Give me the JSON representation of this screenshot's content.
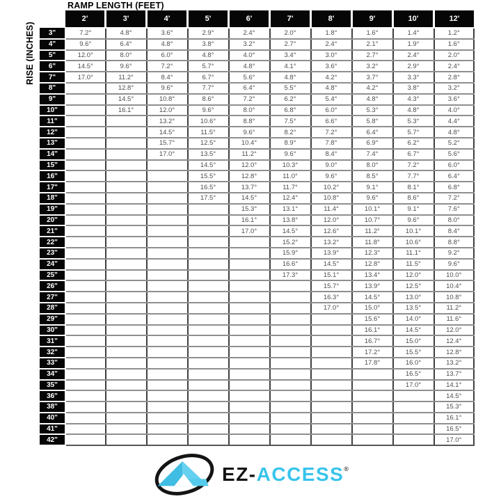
{
  "header": {
    "title": "RAMP LENGTH (FEET)",
    "y_axis_label": "RISE (INCHES)"
  },
  "logo": {
    "text_black": "EZ-",
    "text_cyan": "ACCESS",
    "registered_mark": "®",
    "emblem_icon": "mountain-triangle-in-ellipse",
    "color_cyan": "#38c4ec",
    "color_black": "#141414"
  },
  "colors": {
    "header_bg": "#060606",
    "cell_text": "#4d4d4d",
    "horizontal_grid": "#8e8e8e",
    "vertical_grid": "#3f3f3f"
  },
  "chart_data": {
    "type": "table",
    "title": "RAMP LENGTH (FEET)",
    "xlabel": "RAMP LENGTH (FEET)",
    "ylabel": "RISE (INCHES)",
    "value_unit": "degrees of incline",
    "columns": [
      "2'",
      "3'",
      "4'",
      "5'",
      "6'",
      "7'",
      "8'",
      "9'",
      "10'",
      "12'"
    ],
    "rows": [
      {
        "rise": "3\"",
        "angles": [
          "7.2°",
          "4.8°",
          "3.6°",
          "2.9°",
          "2.4°",
          "2.0°",
          "1.8°",
          "1.6°",
          "1.4°",
          "1.2°"
        ]
      },
      {
        "rise": "4\"",
        "angles": [
          "9.6°",
          "6.4°",
          "4.8°",
          "3.8°",
          "3.2°",
          "2.7°",
          "2.4°",
          "2.1°",
          "1.9°",
          "1.6°"
        ]
      },
      {
        "rise": "5\"",
        "angles": [
          "12.0°",
          "8.0°",
          "6.0°",
          "4.8°",
          "4.0°",
          "3.4°",
          "3.0°",
          "2.7°",
          "2.4°",
          "2.0°"
        ]
      },
      {
        "rise": "6\"",
        "angles": [
          "14.5°",
          "9.6°",
          "7.2°",
          "5.7°",
          "4.8°",
          "4.1°",
          "3.6°",
          "3.2°",
          "2.9°",
          "2.4°"
        ]
      },
      {
        "rise": "7\"",
        "angles": [
          "17.0°",
          "11.2°",
          "8.4°",
          "6.7°",
          "5.6°",
          "4.8°",
          "4.2°",
          "3.7°",
          "3.3°",
          "2.8°"
        ]
      },
      {
        "rise": "8\"",
        "angles": [
          "",
          "12.8°",
          "9.6°",
          "7.7°",
          "6.4°",
          "5.5°",
          "4.8°",
          "4.2°",
          "3.8°",
          "3.2°"
        ]
      },
      {
        "rise": "9\"",
        "angles": [
          "",
          "14.5°",
          "10.8°",
          "8.6°",
          "7.2°",
          "6.2°",
          "5.4°",
          "4.8°",
          "4.3°",
          "3.6°"
        ]
      },
      {
        "rise": "10\"",
        "angles": [
          "",
          "16.1°",
          "12.0°",
          "9.6°",
          "8.0°",
          "6.8°",
          "6.0°",
          "5.3°",
          "4.8°",
          "4.0°"
        ]
      },
      {
        "rise": "11\"",
        "angles": [
          "",
          "",
          "13.2°",
          "10.6°",
          "8.8°",
          "7.5°",
          "6.6°",
          "5.8°",
          "5.3°",
          "4.4°"
        ]
      },
      {
        "rise": "12\"",
        "angles": [
          "",
          "",
          "14.5°",
          "11.5°",
          "9.6°",
          "8.2°",
          "7.2°",
          "6.4°",
          "5.7°",
          "4.8°"
        ]
      },
      {
        "rise": "13\"",
        "angles": [
          "",
          "",
          "15.7°",
          "12.5°",
          "10.4°",
          "8.9°",
          "7.8°",
          "6.9°",
          "6.2°",
          "5.2°"
        ]
      },
      {
        "rise": "14\"",
        "angles": [
          "",
          "",
          "17.0°",
          "13.5°",
          "11.2°",
          "9.6°",
          "8.4°",
          "7.4°",
          "6.7°",
          "5.6°"
        ]
      },
      {
        "rise": "15\"",
        "angles": [
          "",
          "",
          "",
          "14.5°",
          "12.0°",
          "10.3°",
          "9.0°",
          "8.0°",
          "7.2°",
          "6.0°"
        ]
      },
      {
        "rise": "16\"",
        "angles": [
          "",
          "",
          "",
          "15.5°",
          "12.8°",
          "11.0°",
          "9.6°",
          "8.5°",
          "7.7°",
          "6.4°"
        ]
      },
      {
        "rise": "17\"",
        "angles": [
          "",
          "",
          "",
          "16.5°",
          "13.7°",
          "11.7°",
          "10.2°",
          "9.1°",
          "8.1°",
          "6.8°"
        ]
      },
      {
        "rise": "18\"",
        "angles": [
          "",
          "",
          "",
          "17.5°",
          "14.5°",
          "12.4°",
          "10.8°",
          "9.6°",
          "8.6°",
          "7.2°"
        ]
      },
      {
        "rise": "19\"",
        "angles": [
          "",
          "",
          "",
          "",
          "15.3°",
          "13.1°",
          "11.4°",
          "10.1°",
          "9.1°",
          "7.6°"
        ]
      },
      {
        "rise": "20\"",
        "angles": [
          "",
          "",
          "",
          "",
          "16.1°",
          "13.8°",
          "12.0°",
          "10.7°",
          "9.6°",
          "8.0°"
        ]
      },
      {
        "rise": "21\"",
        "angles": [
          "",
          "",
          "",
          "",
          "17.0°",
          "14.5°",
          "12.6°",
          "11.2°",
          "10.1°",
          "8.4°"
        ]
      },
      {
        "rise": "22\"",
        "angles": [
          "",
          "",
          "",
          "",
          "",
          "15.2°",
          "13.2°",
          "11.8°",
          "10.6°",
          "8.8°"
        ]
      },
      {
        "rise": "23\"",
        "angles": [
          "",
          "",
          "",
          "",
          "",
          "15.9°",
          "13.9°",
          "12.3°",
          "11.1°",
          "9.2°"
        ]
      },
      {
        "rise": "24\"",
        "angles": [
          "",
          "",
          "",
          "",
          "",
          "16.6°",
          "14.5°",
          "12.8°",
          "11.5°",
          "9.6°"
        ]
      },
      {
        "rise": "25\"",
        "angles": [
          "",
          "",
          "",
          "",
          "",
          "17.3°",
          "15.1°",
          "13.4°",
          "12.0°",
          "10.0°"
        ]
      },
      {
        "rise": "26\"",
        "angles": [
          "",
          "",
          "",
          "",
          "",
          "",
          "15.7°",
          "13.9°",
          "12.5°",
          "10.4°"
        ]
      },
      {
        "rise": "27\"",
        "angles": [
          "",
          "",
          "",
          "",
          "",
          "",
          "16.3°",
          "14.5°",
          "13.0°",
          "10.8°"
        ]
      },
      {
        "rise": "28\"",
        "angles": [
          "",
          "",
          "",
          "",
          "",
          "",
          "17.0°",
          "15.0°",
          "13.5°",
          "11.2°"
        ]
      },
      {
        "rise": "29\"",
        "angles": [
          "",
          "",
          "",
          "",
          "",
          "",
          "",
          "15.6°",
          "14.0°",
          "11.6°"
        ]
      },
      {
        "rise": "30\"",
        "angles": [
          "",
          "",
          "",
          "",
          "",
          "",
          "",
          "16.1°",
          "14.5°",
          "12.0°"
        ]
      },
      {
        "rise": "31\"",
        "angles": [
          "",
          "",
          "",
          "",
          "",
          "",
          "",
          "16.7°",
          "15.0°",
          "12.4°"
        ]
      },
      {
        "rise": "32\"",
        "angles": [
          "",
          "",
          "",
          "",
          "",
          "",
          "",
          "17.2°",
          "15.5°",
          "12.8°"
        ]
      },
      {
        "rise": "33\"",
        "angles": [
          "",
          "",
          "",
          "",
          "",
          "",
          "",
          "17.8°",
          "16.0°",
          "13.2°"
        ]
      },
      {
        "rise": "34\"",
        "angles": [
          "",
          "",
          "",
          "",
          "",
          "",
          "",
          "",
          "16.5°",
          "13.7°"
        ]
      },
      {
        "rise": "35\"",
        "angles": [
          "",
          "",
          "",
          "",
          "",
          "",
          "",
          "",
          "17.0°",
          "14.1°"
        ]
      },
      {
        "rise": "36\"",
        "angles": [
          "",
          "",
          "",
          "",
          "",
          "",
          "",
          "",
          "",
          "14.5°"
        ]
      },
      {
        "rise": "38\"",
        "angles": [
          "",
          "",
          "",
          "",
          "",
          "",
          "",
          "",
          "",
          "15.3°"
        ]
      },
      {
        "rise": "40\"",
        "angles": [
          "",
          "",
          "",
          "",
          "",
          "",
          "",
          "",
          "",
          "16.1°"
        ]
      },
      {
        "rise": "41\"",
        "angles": [
          "",
          "",
          "",
          "",
          "",
          "",
          "",
          "",
          "",
          "16.5°"
        ]
      },
      {
        "rise": "42\"",
        "angles": [
          "",
          "",
          "",
          "",
          "",
          "",
          "",
          "",
          "",
          "17.0°"
        ]
      }
    ]
  }
}
